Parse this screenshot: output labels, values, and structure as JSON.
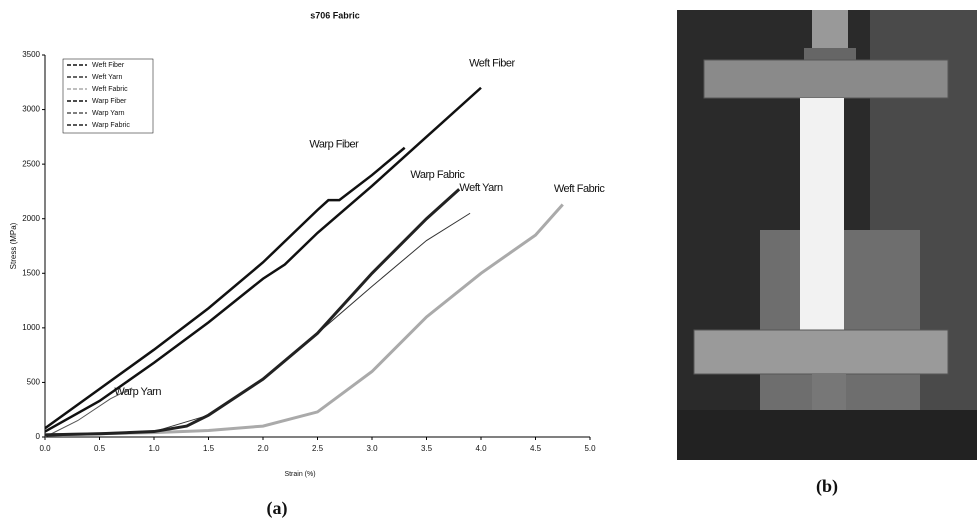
{
  "chart_data": {
    "type": "line",
    "title": "s706 Fabric",
    "x_label": "Strain (%)",
    "y_label": "Stress (MPa)",
    "xlim": [
      0,
      5
    ],
    "ylim": [
      0,
      3500
    ],
    "xticks": [
      {
        "value": 0,
        "label": "0.0"
      },
      0.5,
      {
        "value": 1,
        "label": "1.0"
      },
      1.5,
      {
        "value": 2,
        "label": "2.0"
      },
      2.5,
      {
        "value": 3,
        "label": "3.0"
      },
      3.5,
      {
        "value": 4,
        "label": "4.0"
      },
      4.5,
      {
        "value": 5,
        "label": "5.0"
      }
    ],
    "yticks": [
      0,
      500,
      1000,
      1500,
      2000,
      2500,
      3000,
      3500
    ],
    "legend": "upper-left",
    "series": [
      {
        "name": "Weft Fiber",
        "color": "#111111",
        "width": 2.5,
        "x": [
          0,
          0.5,
          1.0,
          1.5,
          2.0,
          2.2,
          2.5,
          3.0,
          3.5,
          4.0
        ],
        "values": [
          50,
          330,
          680,
          1050,
          1450,
          1580,
          1870,
          2300,
          2750,
          3200
        ]
      },
      {
        "name": "Weft Yarn",
        "color": "#333333",
        "width": 1,
        "x": [
          0,
          1.0,
          1.5,
          2.0,
          2.5,
          3.0,
          3.5,
          3.9
        ],
        "values": [
          20,
          50,
          200,
          530,
          950,
          1380,
          1800,
          2050
        ]
      },
      {
        "name": "Weft Fabric",
        "color": "#aaaaaa",
        "width": 3,
        "x": [
          0,
          1.0,
          1.5,
          2.0,
          2.5,
          3.0,
          3.5,
          4.0,
          4.5,
          4.75
        ],
        "values": [
          20,
          40,
          60,
          100,
          230,
          600,
          1100,
          1500,
          1850,
          2130
        ]
      },
      {
        "name": "Warp Fiber",
        "color": "#111111",
        "width": 2.5,
        "x": [
          0,
          0.5,
          1.0,
          1.5,
          2.0,
          2.5,
          2.6,
          2.7,
          3.0,
          3.3
        ],
        "values": [
          80,
          440,
          800,
          1180,
          1600,
          2080,
          2170,
          2170,
          2400,
          2650
        ]
      },
      {
        "name": "Warp Yarn",
        "color": "#555555",
        "width": 1,
        "x": [
          0,
          0.3,
          0.6,
          0.8
        ],
        "values": [
          0,
          150,
          350,
          450
        ]
      },
      {
        "name": "Warp Fabric",
        "color": "#222222",
        "width": 3,
        "x": [
          0,
          0.5,
          1.0,
          1.3,
          1.5,
          2.0,
          2.5,
          3.0,
          3.5,
          3.8
        ],
        "values": [
          20,
          30,
          50,
          100,
          200,
          530,
          950,
          1500,
          2000,
          2270
        ]
      }
    ],
    "annotations": [
      {
        "text": "Weft Fiber",
        "x": 4.1,
        "y": 3420
      },
      {
        "text": "Warp Fiber",
        "x": 2.65,
        "y": 2680
      },
      {
        "text": "Warp Fabric",
        "x": 3.6,
        "y": 2400
      },
      {
        "text": "Weft Yarn",
        "x": 4.0,
        "y": 2280
      },
      {
        "text": "Weft Fabric",
        "x": 4.9,
        "y": 2270
      },
      {
        "text": "Warp Yarn",
        "x": 0.85,
        "y": 410
      }
    ]
  },
  "captions": {
    "a": "(a)",
    "b": "(b)"
  }
}
